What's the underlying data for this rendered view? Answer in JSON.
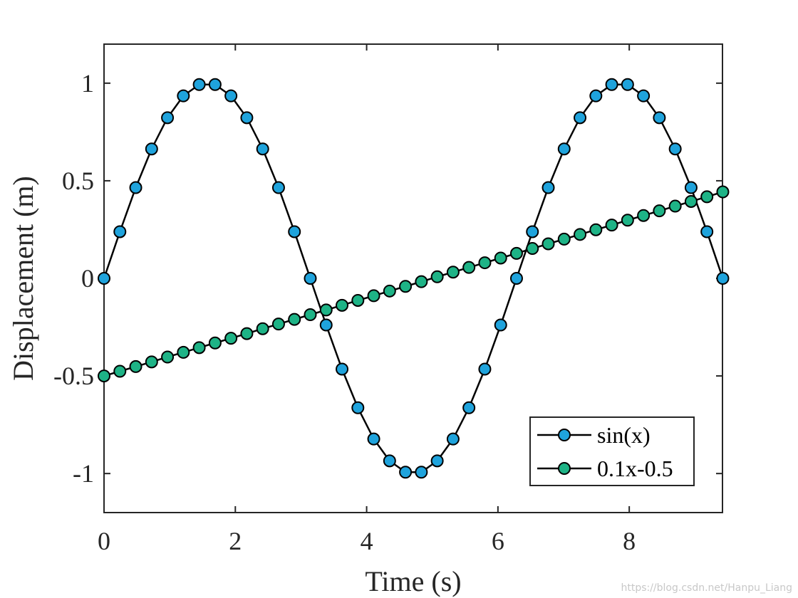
{
  "chart_data": {
    "type": "line",
    "xlabel": "Time (s)",
    "ylabel": "Displacement (m)",
    "xlim": [
      0,
      9.42
    ],
    "ylim": [
      -1.2,
      1.2
    ],
    "x_ticks": [
      0,
      2,
      4,
      6,
      8
    ],
    "y_ticks": [
      -1,
      -0.5,
      0,
      0.5,
      1
    ],
    "x_tick_labels": [
      "0",
      "2",
      "4",
      "6",
      "8"
    ],
    "y_tick_labels": [
      "-1",
      "-0.5",
      "0",
      "0.5",
      "1"
    ],
    "grid": false,
    "legend_position": "bottom-right",
    "x": [
      0,
      0.2417,
      0.4833,
      0.725,
      0.9667,
      1.2083,
      1.45,
      1.6917,
      1.9333,
      2.175,
      2.4167,
      2.6583,
      2.9,
      3.1417,
      3.3833,
      3.625,
      3.8667,
      4.1083,
      4.35,
      4.5917,
      4.8333,
      5.075,
      5.3167,
      5.5583,
      5.8,
      6.0417,
      6.2833,
      6.525,
      6.7667,
      7.0083,
      7.25,
      7.4917,
      7.7333,
      7.975,
      8.2167,
      8.4583,
      8.7,
      8.9417,
      9.1833,
      9.425
    ],
    "series": [
      {
        "name": "sin(x)",
        "color": "#1fa3dc",
        "line_color": "#000000",
        "values": [
          0,
          0.239,
          0.465,
          0.663,
          0.823,
          0.935,
          0.993,
          0.993,
          0.935,
          0.823,
          0.663,
          0.465,
          0.239,
          0,
          -0.239,
          -0.465,
          -0.663,
          -0.823,
          -0.935,
          -0.993,
          -0.993,
          -0.935,
          -0.823,
          -0.663,
          -0.465,
          -0.239,
          0,
          0.239,
          0.465,
          0.663,
          0.823,
          0.935,
          0.993,
          0.993,
          0.935,
          0.823,
          0.663,
          0.465,
          0.239,
          0
        ]
      },
      {
        "name": "0.1x-0.5",
        "color": "#1eb386",
        "line_color": "#000000",
        "values": [
          -0.5,
          -0.476,
          -0.452,
          -0.428,
          -0.403,
          -0.379,
          -0.355,
          -0.331,
          -0.307,
          -0.283,
          -0.258,
          -0.234,
          -0.21,
          -0.186,
          -0.162,
          -0.138,
          -0.113,
          -0.089,
          -0.065,
          -0.041,
          -0.017,
          0.008,
          0.032,
          0.056,
          0.08,
          0.104,
          0.128,
          0.153,
          0.177,
          0.201,
          0.225,
          0.249,
          0.273,
          0.298,
          0.322,
          0.346,
          0.37,
          0.394,
          0.418,
          0.443
        ]
      }
    ]
  },
  "watermark": "https://blog.csdn.net/Hanpu_Liang"
}
